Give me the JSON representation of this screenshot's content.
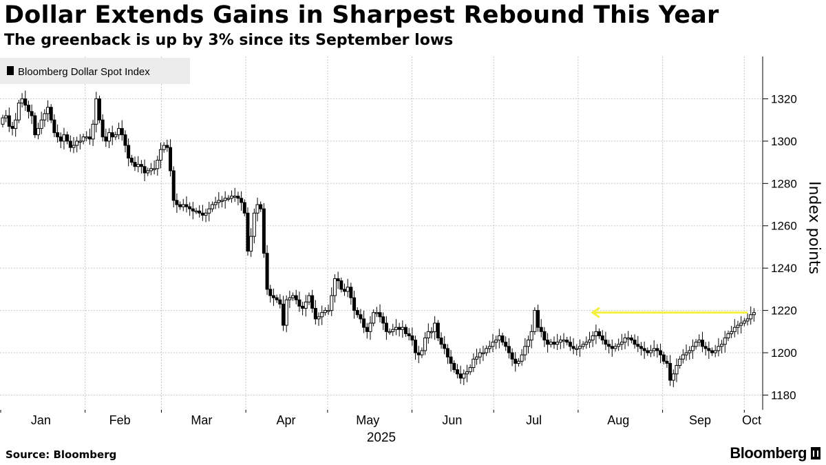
{
  "title": "Dollar Extends Gains in Sharpest Rebound This Year",
  "subtitle": "The greenback is up by 3% since its September lows",
  "source": "Source: Bloomberg",
  "brand": "Bloomberg",
  "colors": {
    "candle": "#000000",
    "arrow": "#f5f03c",
    "grid": "#c8c8c8",
    "legend_bg": "#ececec"
  },
  "chart_data": {
    "type": "candlestick",
    "legend": [
      "Bloomberg Dollar Spot Index"
    ],
    "legend_position": "top-left",
    "ylabel": "Index points",
    "xlabel": "2025",
    "ylim": [
      1173,
      1340
    ],
    "y_ticks": [
      1180,
      1200,
      1220,
      1240,
      1260,
      1280,
      1300,
      1320
    ],
    "x_ticks": [
      "Jan",
      "Feb",
      "Mar",
      "Apr",
      "May",
      "Jun",
      "Jul",
      "Aug",
      "Sep",
      "Oct"
    ],
    "x_range_days": [
      0,
      280
    ],
    "grid": true,
    "annotation": {
      "type": "arrow",
      "from_day": 276,
      "to_day": 210,
      "value": 1219,
      "color": "yellow"
    },
    "daily_close": [
      1311,
      1312,
      1307,
      1306,
      1310,
      1318,
      1320,
      1317,
      1314,
      1312,
      1303,
      1306,
      1310,
      1313,
      1316,
      1310,
      1304,
      1302,
      1300,
      1303,
      1300,
      1297,
      1298,
      1300,
      1300,
      1302,
      1302,
      1301,
      1308,
      1320,
      1310,
      1302,
      1300,
      1304,
      1302,
      1303,
      1306,
      1303,
      1298,
      1292,
      1290,
      1288,
      1289,
      1288,
      1285,
      1286,
      1287,
      1287,
      1291,
      1296,
      1298,
      1297,
      1286,
      1272,
      1270,
      1269,
      1270,
      1269,
      1268,
      1267,
      1267,
      1266,
      1265,
      1266,
      1268,
      1270,
      1271,
      1272,
      1272,
      1273,
      1273,
      1274,
      1274,
      1273,
      1271,
      1266,
      1248,
      1255,
      1266,
      1270,
      1268,
      1247,
      1230,
      1227,
      1226,
      1225,
      1223,
      1213,
      1225,
      1226,
      1227,
      1225,
      1222,
      1221,
      1224,
      1227,
      1221,
      1216,
      1217,
      1219,
      1220,
      1220,
      1227,
      1235,
      1234,
      1230,
      1229,
      1231,
      1226,
      1220,
      1218,
      1216,
      1212,
      1210,
      1214,
      1219,
      1219,
      1217,
      1214,
      1210,
      1210,
      1211,
      1212,
      1211,
      1212,
      1209,
      1208,
      1206,
      1200,
      1199,
      1201,
      1207,
      1210,
      1210,
      1214,
      1207,
      1204,
      1202,
      1198,
      1195,
      1192,
      1190,
      1188,
      1190,
      1191,
      1193,
      1197,
      1198,
      1200,
      1200,
      1202,
      1203,
      1205,
      1206,
      1208,
      1205,
      1203,
      1200,
      1197,
      1195,
      1196,
      1199,
      1203,
      1206,
      1210,
      1220,
      1212,
      1210,
      1206,
      1204,
      1205,
      1204,
      1205,
      1206,
      1206,
      1205,
      1203,
      1202,
      1202,
      1203,
      1204,
      1205,
      1206,
      1208,
      1210,
      1208,
      1206,
      1204,
      1203,
      1202,
      1203,
      1204,
      1205,
      1207,
      1207,
      1206,
      1204,
      1203,
      1202,
      1201,
      1200,
      1201,
      1202,
      1201,
      1199,
      1196,
      1195,
      1187,
      1190,
      1194,
      1197,
      1199,
      1200,
      1201,
      1203,
      1205,
      1206,
      1203,
      1202,
      1201,
      1200,
      1201,
      1203,
      1204,
      1207,
      1209,
      1210,
      1212,
      1213,
      1214,
      1215,
      1216,
      1218,
      1219
    ]
  }
}
